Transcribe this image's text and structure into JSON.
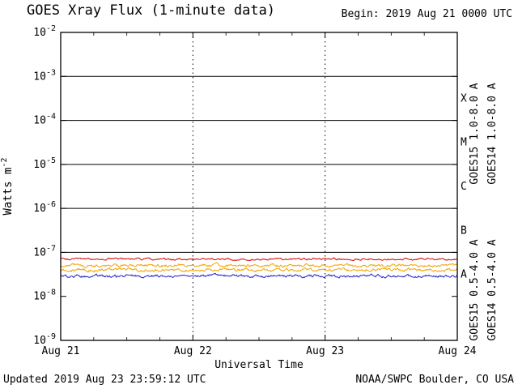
{
  "chart_data": {
    "type": "line",
    "title": "GOES Xray Flux (1-minute data)",
    "begin_label": "Begin: 2019 Aug 21 0000 UTC",
    "xlabel": "Universal Time",
    "ylabel_base": "Watts m",
    "ylabel_exponent": "-2",
    "x_tick_labels": [
      "Aug 21",
      "Aug 22",
      "Aug 23",
      "Aug 24"
    ],
    "x_range_days": 3,
    "y_exponent_top": -2,
    "y_exponent_bottom": -9,
    "y_tick_exponents": [
      -2,
      -3,
      -4,
      -5,
      -6,
      -7,
      -8,
      -9
    ],
    "solid_hline_exponents": [
      -3,
      -4,
      -5,
      -6,
      -7
    ],
    "dotted_vline_days": [
      1,
      2
    ],
    "flare_class_labels": [
      {
        "label": "X",
        "center_exponent": -3.5
      },
      {
        "label": "M",
        "center_exponent": -4.5
      },
      {
        "label": "C",
        "center_exponent": -5.5
      },
      {
        "label": "B",
        "center_exponent": -6.5
      },
      {
        "label": "A",
        "center_exponent": -7.5
      }
    ],
    "series": [
      {
        "name": "GOES15 1.0-8.0 A",
        "color": "#d40000",
        "mean_flux_wm2": 7e-08,
        "noise_decades": 0.013,
        "label_column": 1,
        "label_row": "top"
      },
      {
        "name": "GOES14 1.0-8.0 A",
        "color": "#f2a200",
        "mean_flux_wm2": 5e-08,
        "noise_decades": 0.02,
        "label_column": 2,
        "label_row": "top"
      },
      {
        "name": "GOES15 0.5-4.0 A",
        "color": "#2020cc",
        "mean_flux_wm2": 2.9e-08,
        "noise_decades": 0.02,
        "label_column": 1,
        "label_row": "bottom"
      },
      {
        "name": "GOES14 0.5-4.0 A",
        "color": "#f2a200",
        "mean_flux_wm2": 4e-08,
        "noise_decades": 0.02,
        "label_column": 2,
        "label_row": "bottom"
      }
    ],
    "footer_left": "Updated 2019 Aug 23 23:59:12 UTC",
    "footer_right": "NOAA/SWPC Boulder, CO USA",
    "colors": {
      "axis": "#000000",
      "background": "#ffffff"
    }
  }
}
